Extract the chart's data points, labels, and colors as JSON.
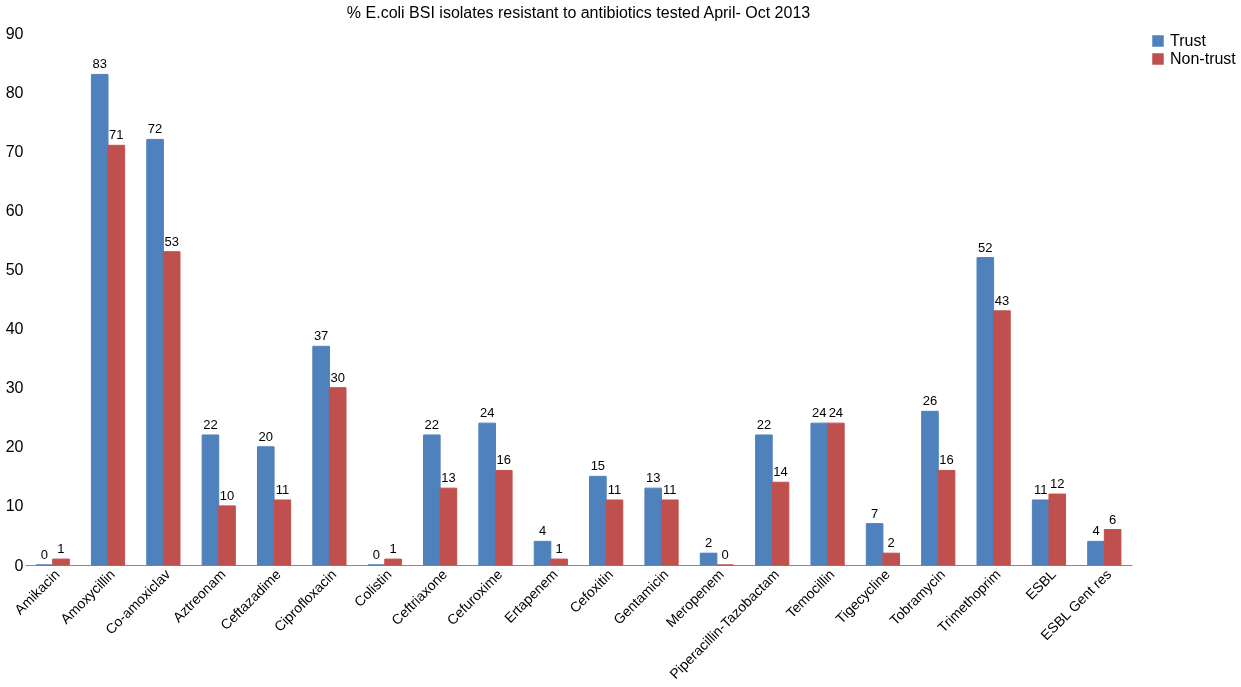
{
  "chart_data": {
    "type": "bar",
    "title": "% E.coli BSI isolates resistant to antibiotics tested April- Oct 2013",
    "categories": [
      "Amikacin",
      "Amoxycillin",
      "Co-amoxiclav",
      "Aztreonam",
      "Ceftazadime",
      "Ciprofloxacin",
      "Colistin",
      "Ceftriaxone",
      "Cefuroxime",
      "Ertapenem",
      "Cefoxitin",
      "Gentamicin",
      "Meropenem",
      "Piperacillin-Tazobactam",
      "Temocillin",
      "Tigecycline",
      "Tobramycin",
      "Trimethoprim",
      "ESBL",
      "ESBL Gent res"
    ],
    "series": [
      {
        "name": "Trust",
        "color": "#4f81bd",
        "values": [
          0,
          83,
          72,
          22,
          20,
          37,
          0,
          22,
          24,
          4,
          15,
          13,
          2,
          22,
          24,
          7,
          26,
          52,
          11,
          4
        ]
      },
      {
        "name": "Non-trust",
        "color": "#c0504d",
        "values": [
          1,
          71,
          53,
          10,
          11,
          30,
          1,
          13,
          16,
          1,
          11,
          11,
          0,
          14,
          24,
          2,
          16,
          43,
          12,
          6
        ]
      }
    ],
    "ylim": [
      0,
      90
    ],
    "yticks": [
      0,
      10,
      20,
      30,
      40,
      50,
      60,
      70,
      80,
      90
    ],
    "grid": false,
    "legend": "right",
    "data_labels": true
  }
}
